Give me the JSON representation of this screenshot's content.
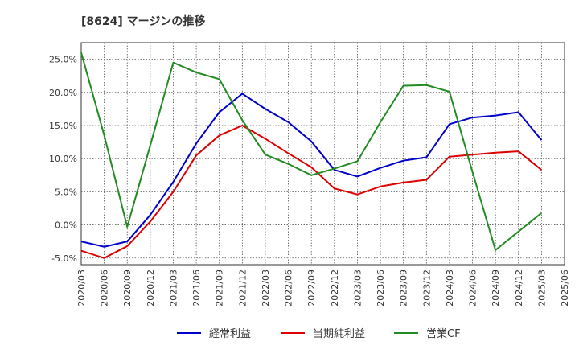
{
  "title": "[8624]  マージンの推移",
  "chart_data": {
    "type": "line",
    "title": "[8624]  マージンの推移",
    "x": [
      "2020/03",
      "2020/06",
      "2020/09",
      "2020/12",
      "2021/03",
      "2021/06",
      "2021/09",
      "2021/12",
      "2022/03",
      "2022/06",
      "2022/09",
      "2022/12",
      "2023/03",
      "2023/06",
      "2023/09",
      "2023/12",
      "2024/03",
      "2024/06",
      "2024/09",
      "2024/12",
      "2025/03",
      "2025/06"
    ],
    "ylim": [
      -6,
      27.5
    ],
    "yticks": [
      -5,
      0,
      5,
      10,
      15,
      20,
      25
    ],
    "ytick_labels": [
      "-5.0%",
      "0.0%",
      "5.0%",
      "10.0%",
      "15.0%",
      "20.0%",
      "25.0%"
    ],
    "grid": true,
    "legend_position": "bottom",
    "series": [
      {
        "name": "経常利益",
        "color": "#0000cc",
        "values": [
          -2.5,
          -3.3,
          -2.5,
          1.5,
          6.5,
          12.3,
          17.0,
          19.8,
          17.5,
          15.5,
          12.6,
          8.3,
          7.3,
          8.6,
          9.7,
          10.2,
          15.2,
          16.2,
          16.5,
          17.0,
          12.8,
          null
        ]
      },
      {
        "name": "当期純利益",
        "color": "#dd0000",
        "values": [
          -3.9,
          -5.0,
          -3.2,
          0.5,
          5.0,
          10.5,
          13.5,
          15.0,
          13.0,
          10.8,
          8.7,
          5.5,
          4.6,
          5.8,
          6.4,
          6.8,
          10.3,
          10.6,
          10.9,
          11.1,
          8.3,
          null
        ]
      },
      {
        "name": "営業CF",
        "color": "#228b22",
        "values": [
          26.0,
          13.5,
          -0.3,
          12.0,
          24.5,
          23.0,
          22.0,
          15.8,
          10.6,
          9.2,
          7.5,
          8.5,
          9.6,
          15.5,
          21.0,
          21.1,
          20.1,
          8.0,
          -3.8,
          -1.0,
          1.8,
          null
        ]
      }
    ]
  }
}
